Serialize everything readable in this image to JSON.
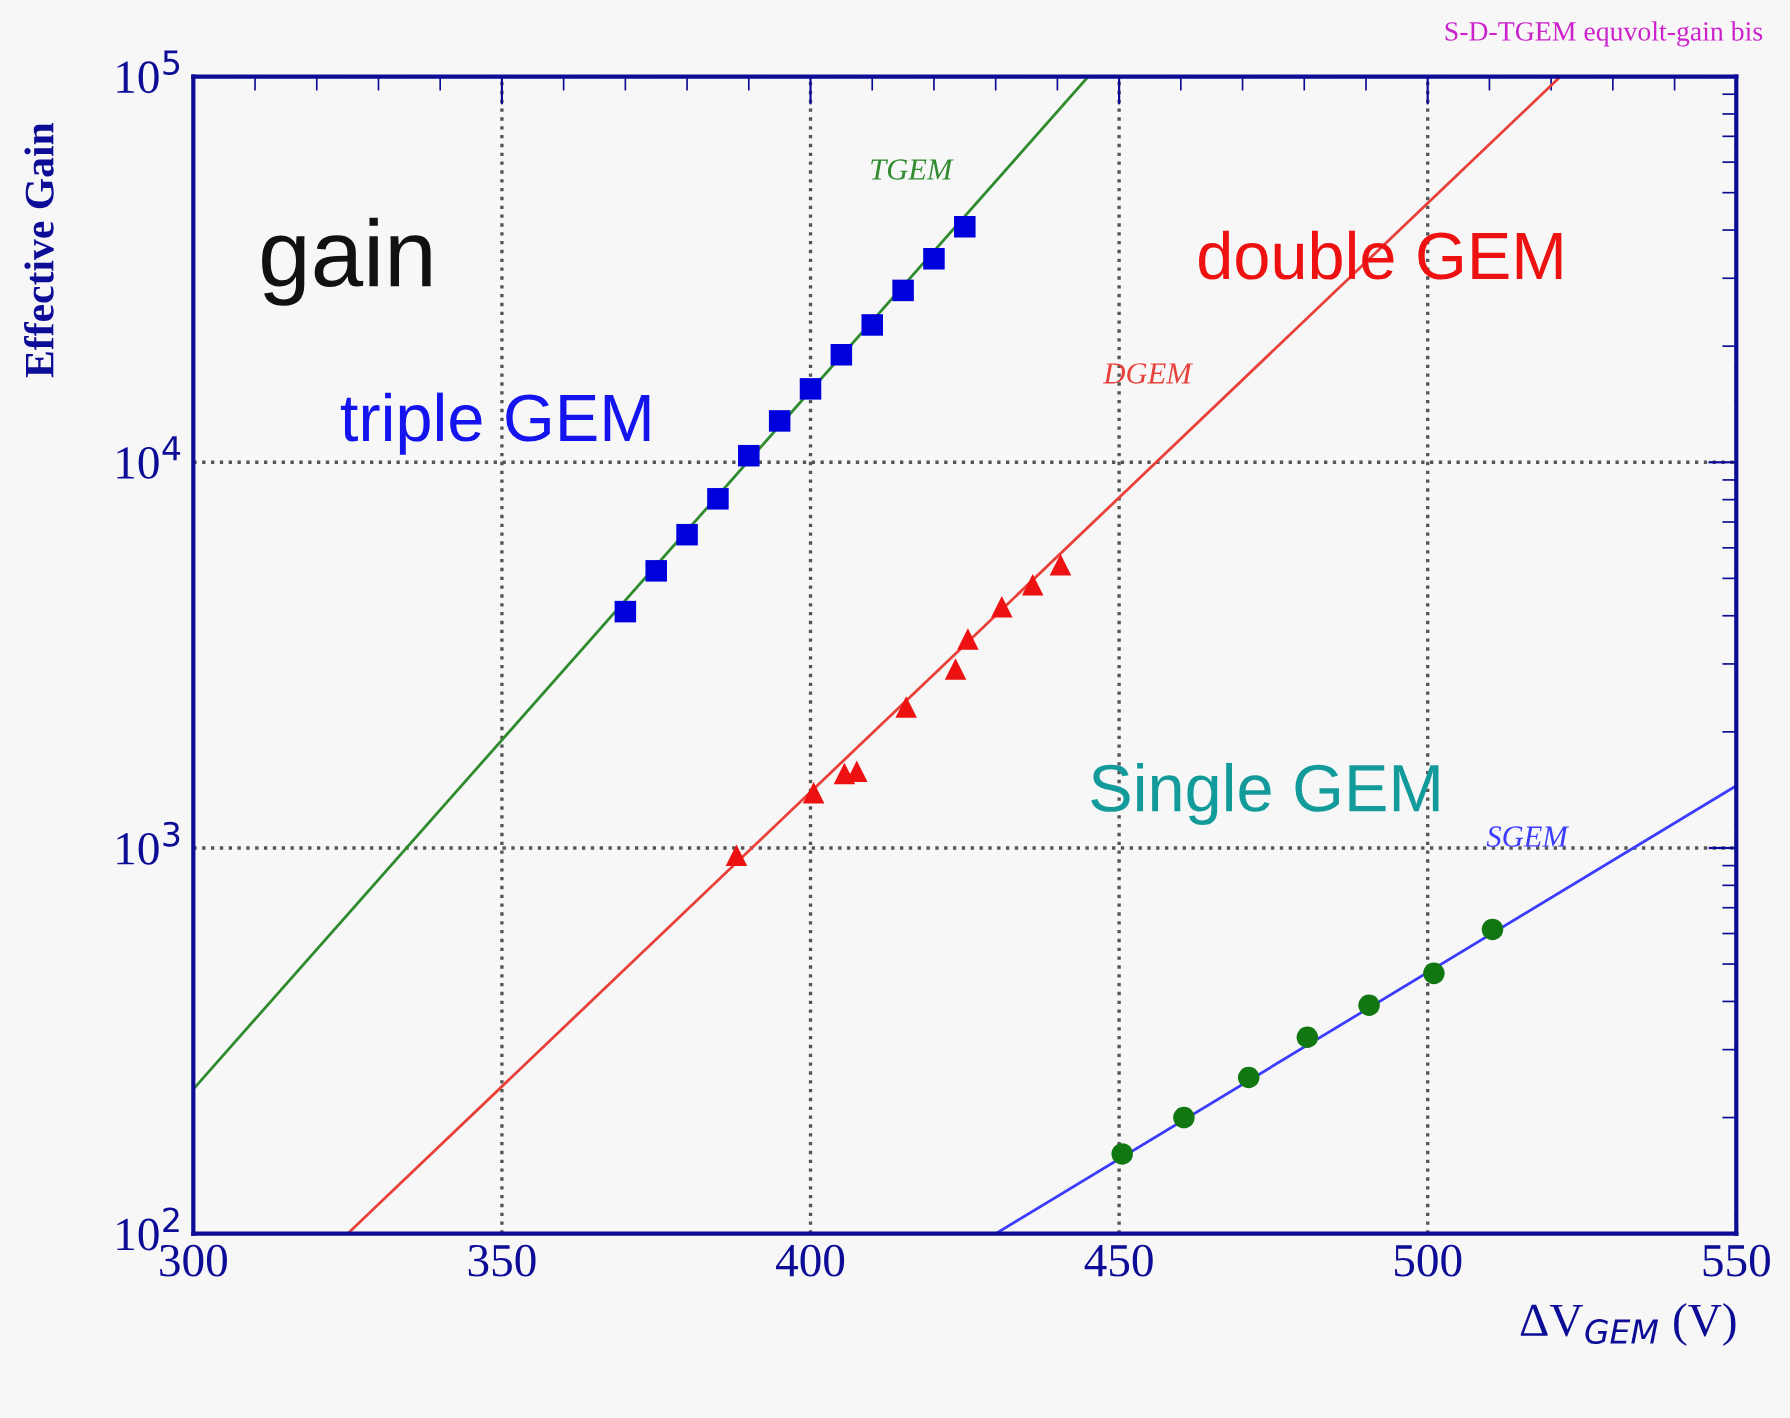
{
  "chart_data": {
    "type": "scatter",
    "title": "S-D-TGEM equvolt-gain bis",
    "xlabel": "ΔV$_{GEM}$ (V)",
    "ylabel": "Effective Gain",
    "annotations": [
      "gain",
      "triple GEM",
      "double GEM",
      "Single GEM"
    ],
    "log": "y",
    "grid": true,
    "xlim": [
      300,
      550
    ],
    "xticks": [
      300,
      350,
      400,
      450,
      500,
      550
    ],
    "ylim": [
      100,
      100000
    ],
    "yticks": [
      {
        "value": 100,
        "label": "10$^{2}$"
      },
      {
        "value": 1000,
        "label": "10$^{3}$"
      },
      {
        "value": 10000,
        "label": "10$^{4}$"
      },
      {
        "value": 100000,
        "label": "10$^{5}$"
      }
    ],
    "series": [
      {
        "type": "line",
        "name": "TGEM",
        "color": "#2e8b2e",
        "marker": "none",
        "x": [
          300,
          445
        ],
        "values": [
          237,
          100000
        ]
      },
      {
        "type": "line",
        "name": "DGEM",
        "color": "#e8403a",
        "marker": "none",
        "x": [
          325,
          521.5
        ],
        "values": [
          100,
          100000
        ]
      },
      {
        "type": "line",
        "name": "SGEM",
        "color": "#3c3cff",
        "marker": "none",
        "x": [
          430,
          550
        ],
        "values": [
          100,
          1450
        ]
      },
      {
        "color": "#0000dd",
        "marker": "square",
        "x": [
          370,
          375,
          380,
          385,
          390,
          395,
          400,
          405,
          410,
          415,
          420,
          425
        ],
        "values": [
          4100,
          5230,
          6490,
          8040,
          10400,
          12800,
          15500,
          19000,
          22700,
          27900,
          33700,
          40800
        ]
      },
      {
        "color": "#ee1111",
        "marker": "triangle",
        "x": [
          388,
          400.5,
          405.5,
          407.5,
          415.5,
          423.5,
          425.5,
          431,
          436,
          440.5
        ],
        "values": [
          958,
          1390,
          1560,
          1580,
          2320,
          2910,
          3480,
          4220,
          4810,
          5420
        ]
      },
      {
        "color": "#117711",
        "marker": "circle",
        "x": [
          450.5,
          460.5,
          471,
          480.5,
          490.5,
          501,
          510.5
        ],
        "values": [
          161,
          200,
          254,
          323,
          391,
          473,
          615
        ]
      }
    ]
  }
}
